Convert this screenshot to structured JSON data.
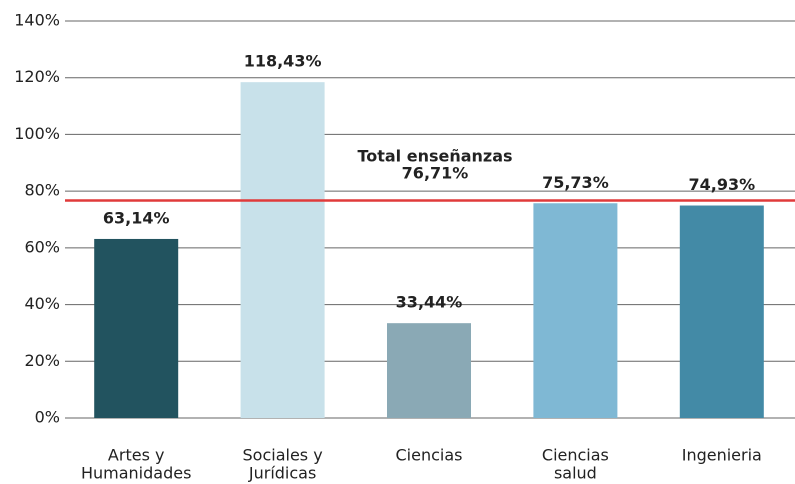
{
  "chart_data": {
    "type": "bar",
    "categories": [
      [
        "Artes y",
        "Humanidades"
      ],
      [
        "Sociales y",
        "Jurídicas"
      ],
      [
        "Ciencias"
      ],
      [
        "Ciencias",
        "salud"
      ],
      [
        "Ingenieria"
      ]
    ],
    "values": [
      63.14,
      118.43,
      33.44,
      75.73,
      74.93
    ],
    "value_labels": [
      "63,14%",
      "118,43%",
      "33,44%",
      "75,73%",
      "74,93%"
    ],
    "colors": [
      "#22535f",
      "#c8e1ea",
      "#8aa9b5",
      "#7fb8d4",
      "#438aa6"
    ],
    "ylim": [
      0,
      140
    ],
    "yticks": [
      {
        "value": 0,
        "label": "0%"
      },
      {
        "value": 20,
        "label": "20%"
      },
      {
        "value": 40,
        "label": "40%"
      },
      {
        "value": 60,
        "label": "60%"
      },
      {
        "value": 80,
        "label": "80%"
      },
      {
        "value": 100,
        "label": "100%"
      },
      {
        "value": 120,
        "label": "120%"
      },
      {
        "value": 140,
        "label": "140%"
      }
    ],
    "grid": true,
    "reference": {
      "label": "Total enseñanzas",
      "value": 76.71,
      "value_label": "76,71%",
      "color": "#e03a3a"
    }
  }
}
